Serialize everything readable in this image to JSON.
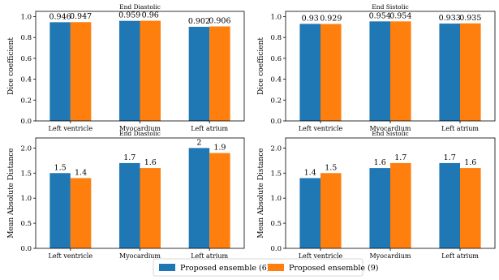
{
  "legend": [
    {
      "label": "Proposed ensemble (6)",
      "color": "#1f77b4"
    },
    {
      "label": "Proposed ensemble (9)",
      "color": "#ff7f0e"
    }
  ],
  "chart_data": [
    {
      "type": "bar",
      "title": "End Diastolic",
      "xlabel": "",
      "ylabel": "Dice coefficient",
      "ylim": [
        0,
        1.05
      ],
      "yticks": [
        "0.0",
        "0.2",
        "0.4",
        "0.6",
        "0.8",
        "1.0"
      ],
      "categories": [
        "Left ventricle",
        "Myocardium",
        "Left atrium"
      ],
      "series": [
        {
          "name": "Proposed ensemble (6)",
          "values": [
            0.946,
            0.959,
            0.902
          ],
          "labels": [
            "0.946",
            "0.959",
            "0.902"
          ]
        },
        {
          "name": "Proposed ensemble (9)",
          "values": [
            0.947,
            0.96,
            0.906
          ],
          "labels": [
            "0.947",
            "0.96",
            "0.906"
          ]
        }
      ]
    },
    {
      "type": "bar",
      "title": "End Sistolic",
      "xlabel": "",
      "ylabel": "Dice coefficient",
      "ylim": [
        0,
        1.05
      ],
      "yticks": [
        "0.0",
        "0.2",
        "0.4",
        "0.6",
        "0.8",
        "1.0"
      ],
      "categories": [
        "Left ventricle",
        "Myocardium",
        "Left atrium"
      ],
      "series": [
        {
          "name": "Proposed ensemble (6)",
          "values": [
            0.93,
            0.954,
            0.933
          ],
          "labels": [
            "0.93",
            "0.954",
            "0.933"
          ]
        },
        {
          "name": "Proposed ensemble (9)",
          "values": [
            0.929,
            0.954,
            0.935
          ],
          "labels": [
            "0.929",
            "0.954",
            "0.935"
          ]
        }
      ]
    },
    {
      "type": "bar",
      "title": "End Diastolic",
      "xlabel": "",
      "ylabel": "Mean Absolute Distance",
      "ylim": [
        0,
        2.2
      ],
      "yticks": [
        "0.0",
        "0.5",
        "1.0",
        "1.5",
        "2.0"
      ],
      "categories": [
        "Left ventricle",
        "Myocardium",
        "Left atrium"
      ],
      "series": [
        {
          "name": "Proposed ensemble (6)",
          "values": [
            1.5,
            1.7,
            2.0
          ],
          "labels": [
            "1.5",
            "1.7",
            "2"
          ]
        },
        {
          "name": "Proposed ensemble (9)",
          "values": [
            1.4,
            1.6,
            1.9
          ],
          "labels": [
            "1.4",
            "1.6",
            "1.9"
          ]
        }
      ]
    },
    {
      "type": "bar",
      "title": "End Sistolic",
      "xlabel": "",
      "ylabel": "Mean Absolute Distance",
      "ylim": [
        0,
        2.2
      ],
      "yticks": [
        "0.0",
        "0.5",
        "1.0",
        "1.5",
        "2.0"
      ],
      "categories": [
        "Left ventricle",
        "Myocardium",
        "Left atrium"
      ],
      "series": [
        {
          "name": "Proposed ensemble (6)",
          "values": [
            1.4,
            1.6,
            1.7
          ],
          "labels": [
            "1.4",
            "1.6",
            "1.7"
          ]
        },
        {
          "name": "Proposed ensemble (9)",
          "values": [
            1.5,
            1.7,
            1.6
          ],
          "labels": [
            "1.5",
            "1.7",
            "1.6"
          ]
        }
      ]
    }
  ]
}
